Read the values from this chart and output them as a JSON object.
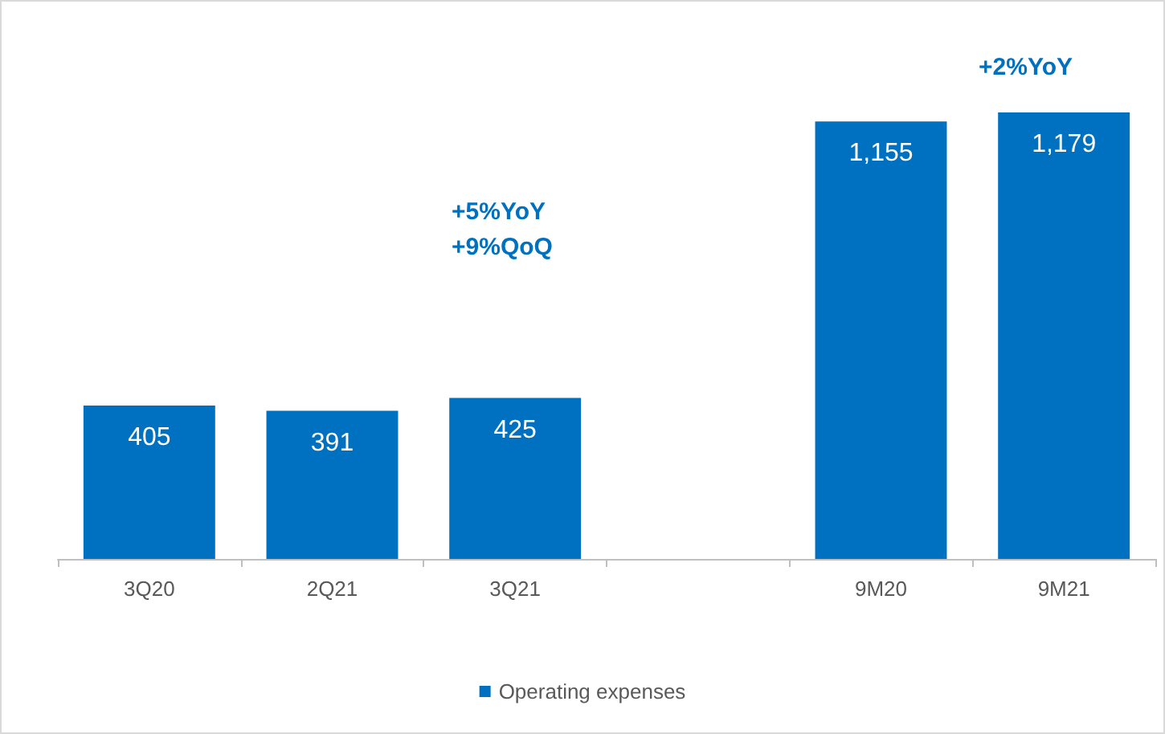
{
  "chart_data": {
    "type": "bar",
    "categories": [
      "3Q20",
      "2Q21",
      "3Q21",
      null,
      "9M20",
      "9M21"
    ],
    "series": [
      {
        "name": "Operating expenses",
        "color": "#0070c0",
        "values": [
          405,
          391,
          425,
          null,
          1155,
          1179
        ],
        "value_labels": [
          "405",
          "391",
          "425",
          null,
          "1,155",
          "1,179"
        ]
      }
    ],
    "annotations": [
      "+5%YoY\n+9%QoQ",
      "+2%YoY"
    ],
    "legend": "bottom"
  }
}
